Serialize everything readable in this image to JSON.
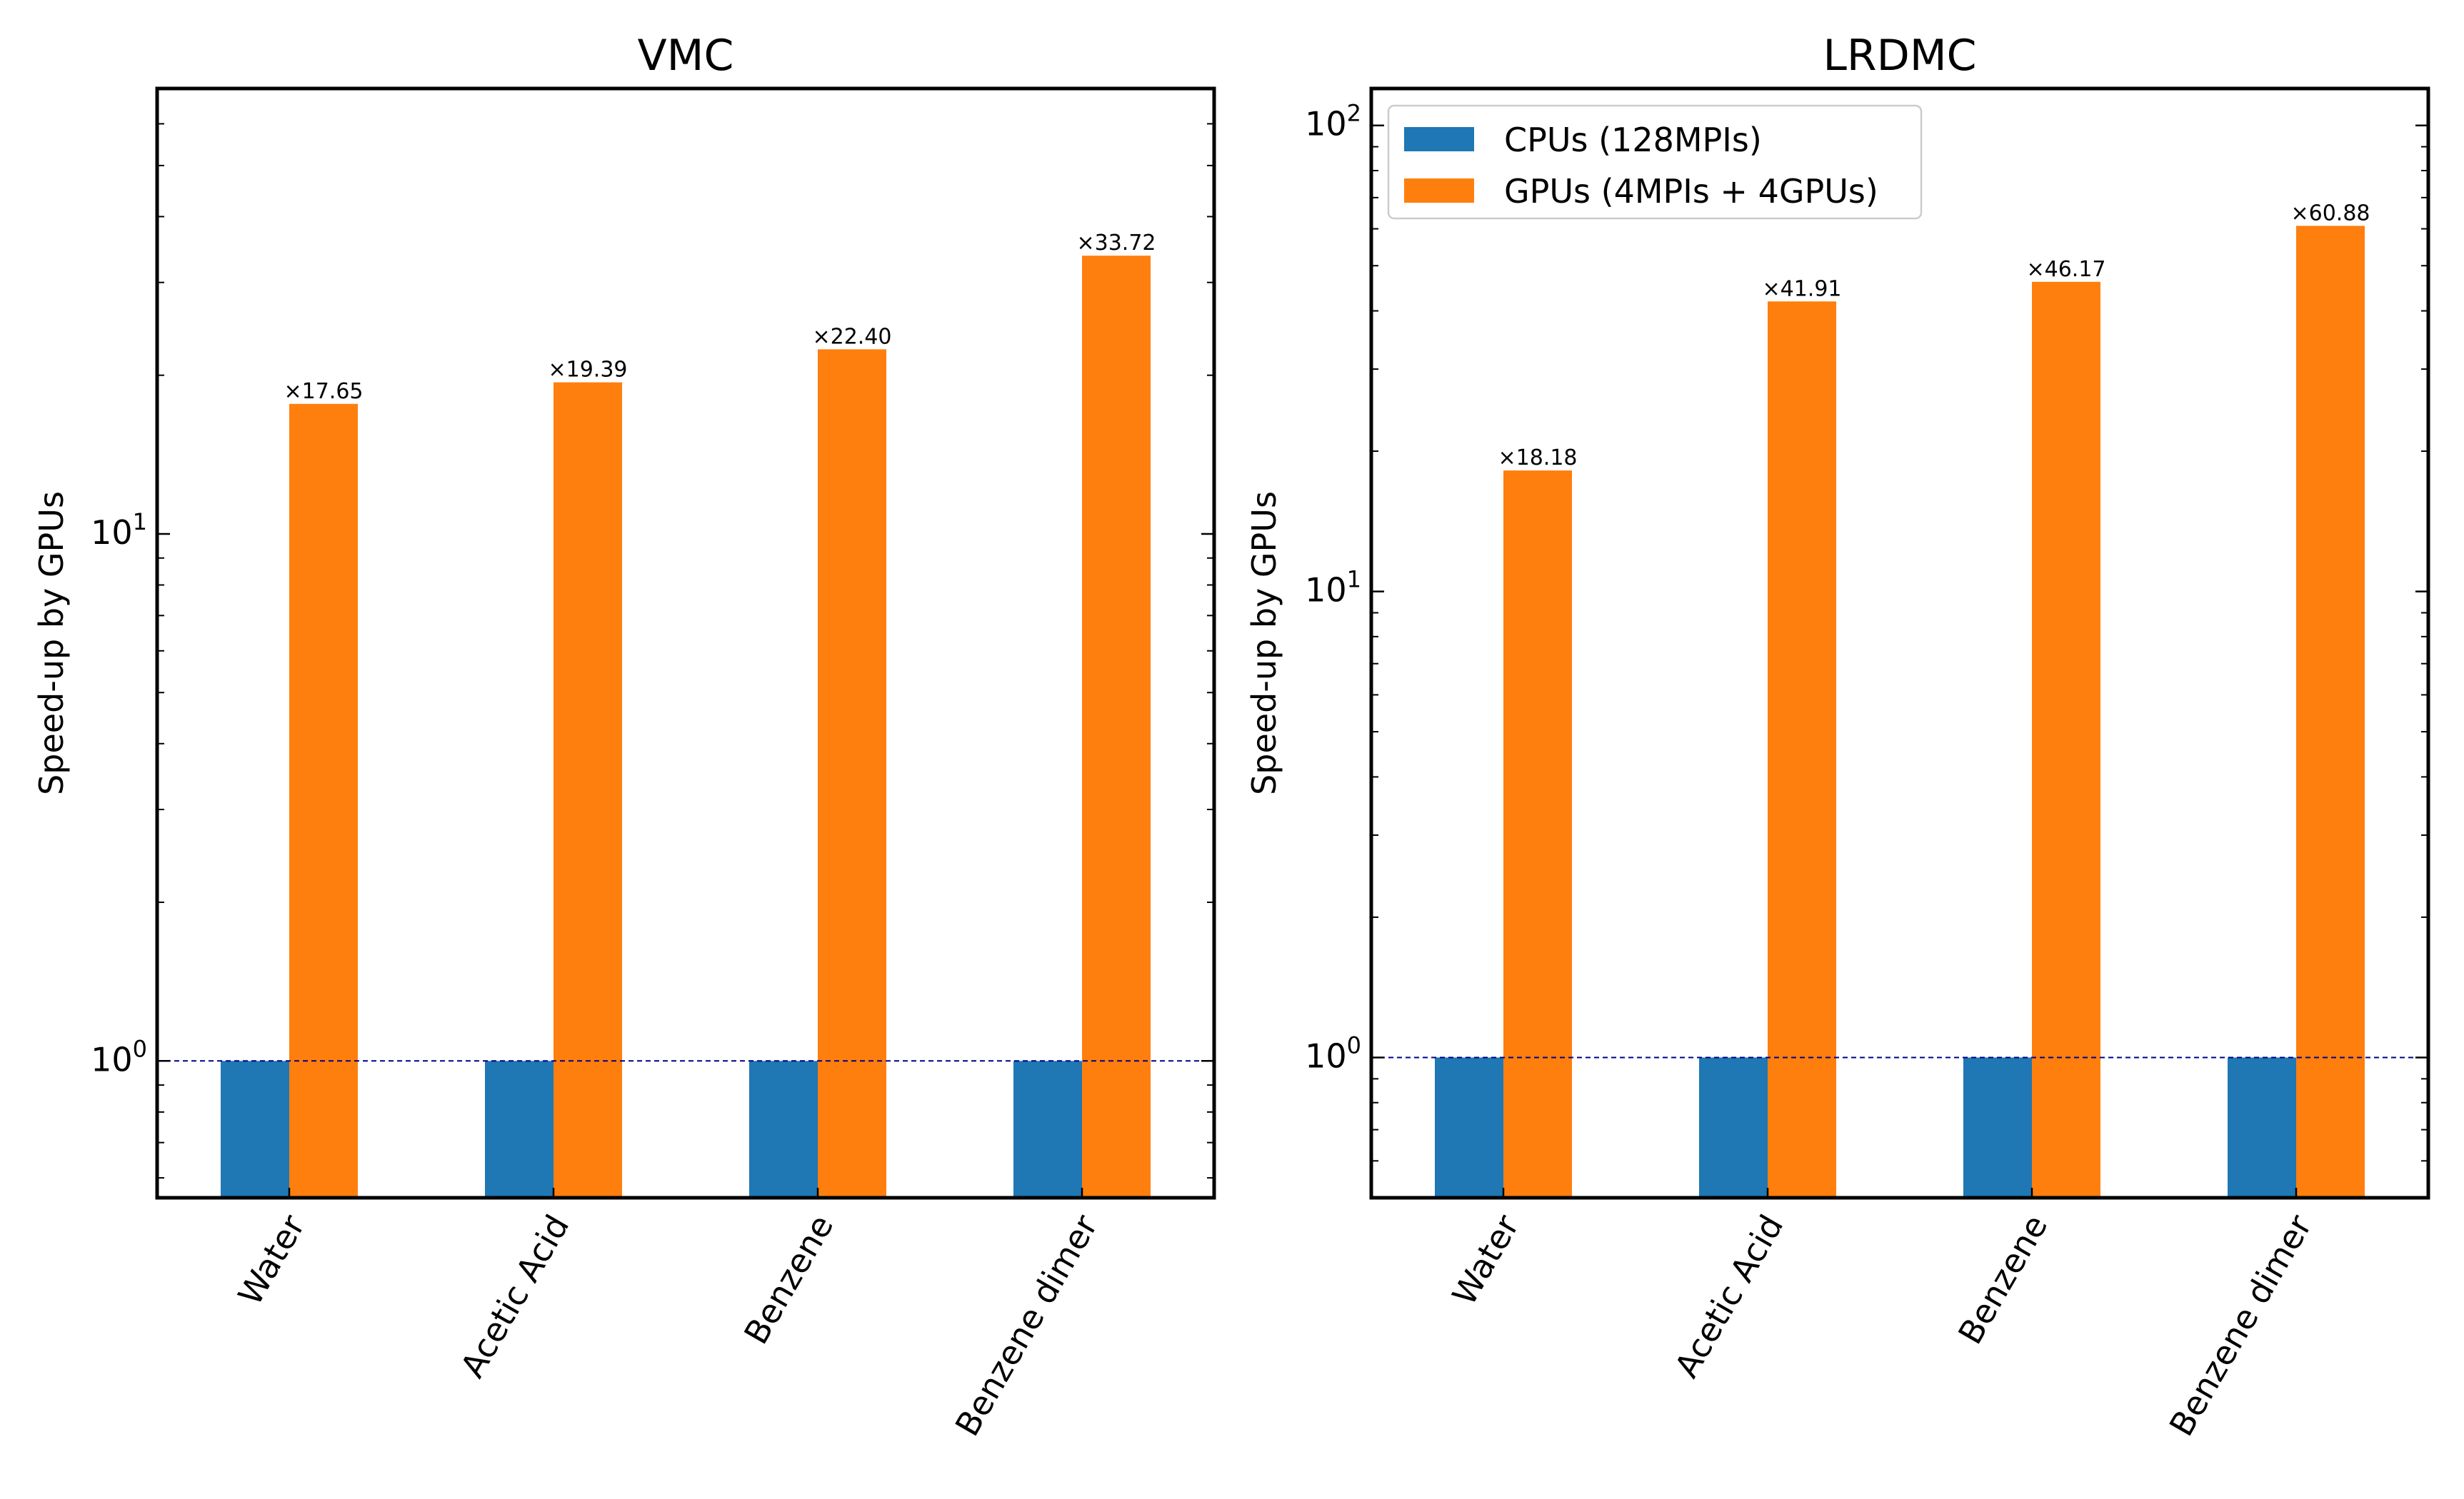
{
  "colors": {
    "cpu": "#1f77b4",
    "gpu": "#ff7f0e",
    "baseline": "#00008b"
  },
  "chart_data": [
    {
      "type": "bar",
      "title": "VMC",
      "xlabel": "",
      "ylabel": "Speed-up by GPUs",
      "yscale": "log",
      "ylim": [
        0.55,
        70
      ],
      "yticks": [
        {
          "value": 1,
          "base": "10",
          "exp": "0"
        },
        {
          "value": 10,
          "base": "10",
          "exp": "1"
        }
      ],
      "categories": [
        "Water",
        "Acetic Acid",
        "Benzene",
        "Benzene dimer"
      ],
      "series": [
        {
          "name": "CPUs (128MPIs)",
          "values": [
            1,
            1,
            1,
            1
          ]
        },
        {
          "name": "GPUs (4MPIs + 4GPUs)",
          "values": [
            17.65,
            19.39,
            22.4,
            33.72
          ]
        }
      ],
      "data_labels": [
        "×17.65",
        "×19.39",
        "×22.40",
        "×33.72"
      ],
      "baseline": 1,
      "grid": false,
      "legend": null
    },
    {
      "type": "bar",
      "title": "LRDMC",
      "xlabel": "",
      "ylabel": "Speed-up by GPUs",
      "yscale": "log",
      "ylim": [
        0.5,
        120
      ],
      "yticks": [
        {
          "value": 1,
          "base": "10",
          "exp": "0"
        },
        {
          "value": 10,
          "base": "10",
          "exp": "1"
        },
        {
          "value": 100,
          "base": "10",
          "exp": "2"
        }
      ],
      "categories": [
        "Water",
        "Acetic Acid",
        "Benzene",
        "Benzene dimer"
      ],
      "series": [
        {
          "name": "CPUs (128MPIs)",
          "values": [
            1,
            1,
            1,
            1
          ]
        },
        {
          "name": "GPUs (4MPIs + 4GPUs)",
          "values": [
            18.18,
            41.91,
            46.17,
            60.88
          ]
        }
      ],
      "data_labels": [
        "×18.18",
        "×41.91",
        "×46.17",
        "×60.88"
      ],
      "baseline": 1,
      "grid": false,
      "legend": "top-left"
    }
  ]
}
